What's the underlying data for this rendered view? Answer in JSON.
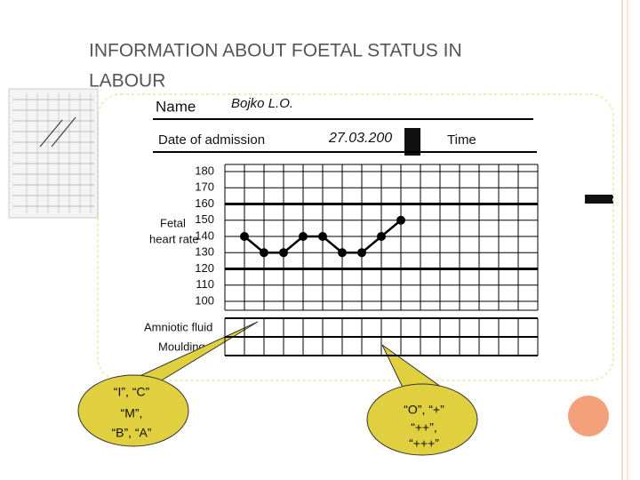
{
  "chart_data": {
    "type": "line",
    "title_lines": [
      "INFORMATION ABOUT FOETAL STATUS IN",
      "LABOUR"
    ],
    "header": {
      "name_label": "Name",
      "name_value": "Bojko L.O.",
      "date_label": "Date of admission",
      "date_value": "27.03.200",
      "time_label": "Time"
    },
    "ylabel_lines": [
      "Fetal",
      "heart rate"
    ],
    "row_labels": [
      "Amniotic fluid",
      "Moulding"
    ],
    "callouts": [
      [
        "“I”, “C”",
        "“M”,",
        "“B”, “A”"
      ],
      [
        "“O”, “+”",
        "“++”,",
        "“+++”"
      ]
    ],
    "x": [
      1,
      2,
      3,
      4,
      5,
      6,
      7,
      8,
      9
    ],
    "series": [
      {
        "color": "#000000",
        "values": [
          140,
          130,
          130,
          140,
          140,
          130,
          130,
          140,
          150
        ]
      }
    ],
    "xlim": [
      0,
      16
    ],
    "ylim": [
      100,
      180
    ],
    "yticks": [
      180,
      170,
      160,
      150,
      140,
      130,
      120,
      110,
      100
    ],
    "bold_lines": [
      160,
      120
    ],
    "grid": true
  }
}
